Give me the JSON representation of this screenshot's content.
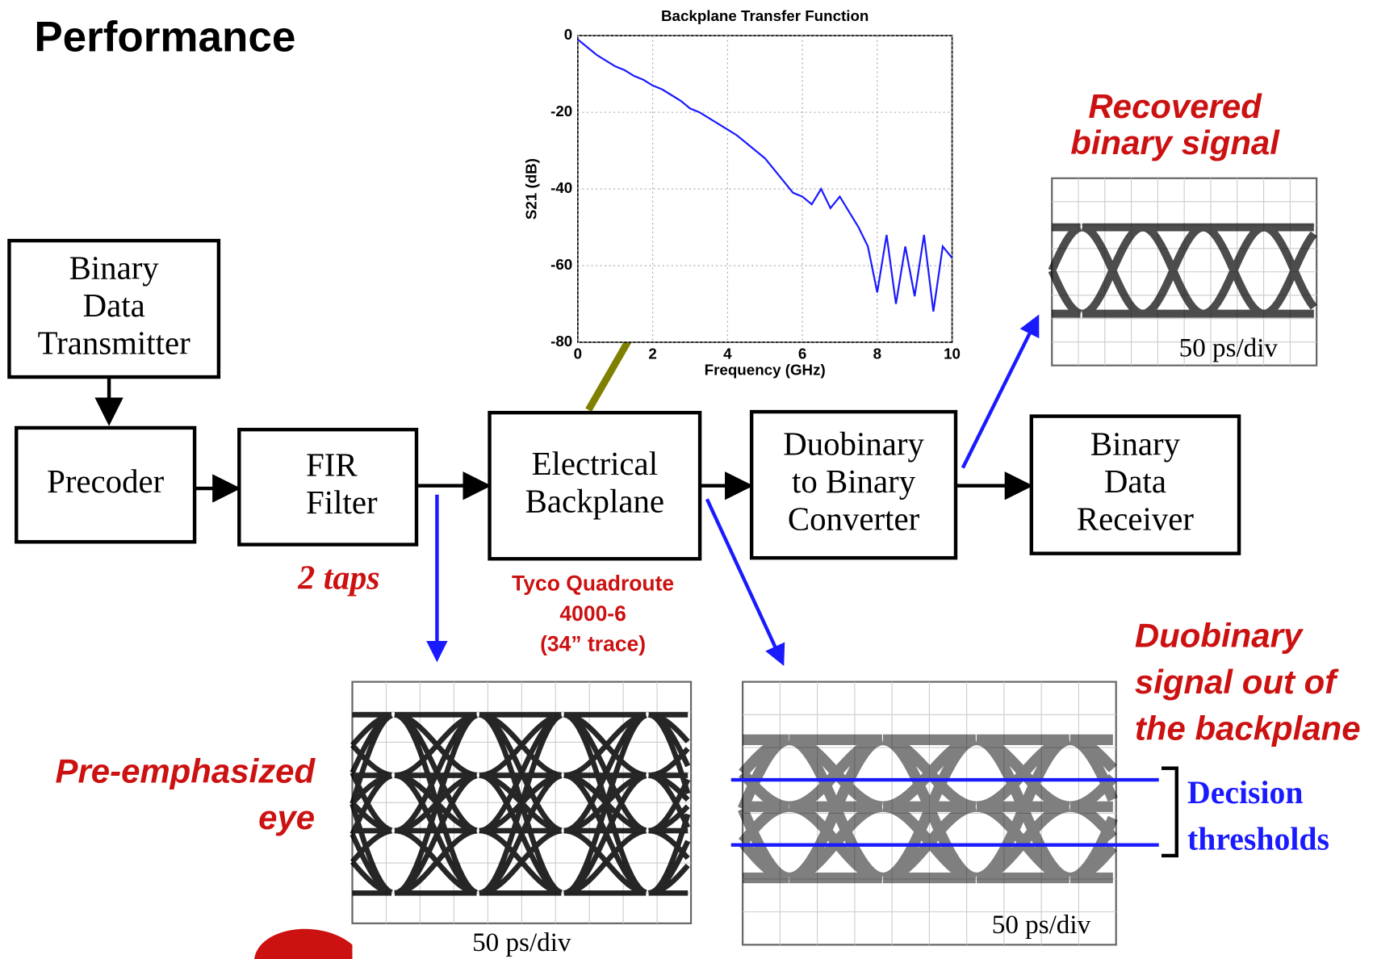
{
  "title": "Performance",
  "blocks": [
    {
      "lines": [
        "Binary",
        "Data",
        "Transmitter"
      ]
    },
    {
      "lines": [
        "Precoder"
      ]
    },
    {
      "lines": [
        "FIR",
        "Filter"
      ]
    },
    {
      "lines": [
        "Electrical",
        "Backplane"
      ]
    },
    {
      "lines": [
        "Duobinary",
        "to Binary",
        "Converter"
      ]
    },
    {
      "lines": [
        "Binary",
        "Data",
        "Receiver"
      ]
    }
  ],
  "annotations": {
    "taps": "2 taps",
    "backplane": [
      "Tyco Quadroute",
      "4000-6",
      "(34” trace)"
    ],
    "recovered": [
      "Recovered",
      "binary signal"
    ],
    "preemph": [
      "Pre-emphasized",
      "eye"
    ],
    "duobinary": [
      "Duobinary",
      "signal out of",
      "the backplane"
    ],
    "thresholds": [
      "Decision",
      "thresholds"
    ]
  },
  "scopes": [
    {
      "label": "50 ps/div"
    },
    {
      "label": "50 ps/div"
    },
    {
      "label": "50 ps/div"
    }
  ],
  "plot": {
    "type": "line",
    "title": "Backplane Transfer Function",
    "xlabel": "Frequency (GHz)",
    "ylabel": "S21 (dB)",
    "color": "#1a1aff",
    "grid": true,
    "xlim": [
      0,
      10
    ],
    "ylim": [
      -80,
      0
    ],
    "xticks": [
      0,
      2,
      4,
      6,
      8,
      10
    ],
    "yticks": [
      0,
      -20,
      -40,
      -60,
      -80
    ],
    "x": [
      0,
      0.25,
      0.5,
      0.75,
      1,
      1.25,
      1.5,
      1.75,
      2,
      2.25,
      2.5,
      2.75,
      3,
      3.25,
      3.5,
      3.75,
      4,
      4.25,
      4.5,
      4.75,
      5,
      5.25,
      5.5,
      5.75,
      6,
      6.25,
      6.5,
      6.75,
      7,
      7.25,
      7.5,
      7.75,
      8,
      8.25,
      8.5,
      8.75,
      9,
      9.25,
      9.5,
      9.75,
      10
    ],
    "values": [
      -1,
      -3,
      -5,
      -6.5,
      -8,
      -9,
      -10.5,
      -11.5,
      -13,
      -14,
      -15.5,
      -17,
      -19,
      -20,
      -21.5,
      -23,
      -24.5,
      -26,
      -28,
      -30,
      -32,
      -35,
      -38,
      -41,
      -42,
      -44,
      -40,
      -45,
      -42,
      -46,
      -50,
      -55,
      -67,
      -52,
      -70,
      -55,
      -68,
      -52,
      -72,
      -55,
      -58
    ]
  }
}
